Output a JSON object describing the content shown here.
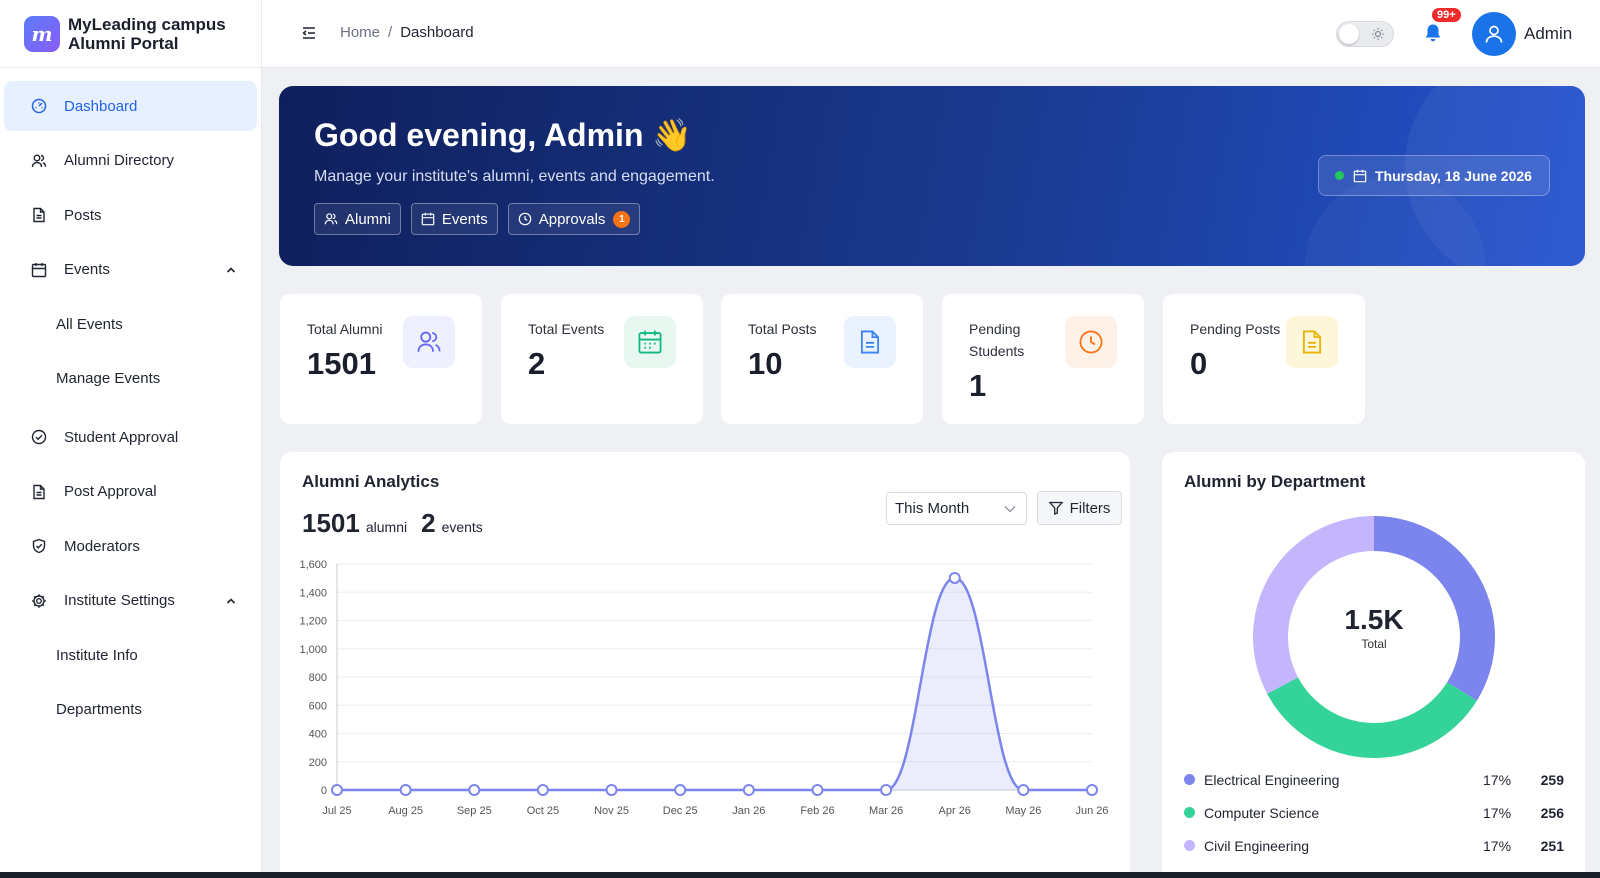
{
  "brand": {
    "logo_letter": "m",
    "line1": "MyLeading campus",
    "line2": "Alumni Portal"
  },
  "sidebar": {
    "items": [
      {
        "label": "Dashboard",
        "icon": "dashboard-icon"
      },
      {
        "label": "Alumni Directory",
        "icon": "users-icon"
      },
      {
        "label": "Posts",
        "icon": "file-icon"
      },
      {
        "label": "Events",
        "icon": "calendar-icon",
        "expanded": true
      },
      {
        "label": "Student Approval",
        "icon": "check-circle-icon"
      },
      {
        "label": "Post Approval",
        "icon": "file-check-icon"
      },
      {
        "label": "Moderators",
        "icon": "shield-icon"
      },
      {
        "label": "Institute Settings",
        "icon": "gear-icon",
        "expanded": true
      }
    ],
    "events_sub": [
      "All Events",
      "Manage Events"
    ],
    "settings_sub": [
      "Institute Info",
      "Departments"
    ]
  },
  "header": {
    "breadcrumb_home": "Home",
    "breadcrumb_sep": "/",
    "breadcrumb_current": "Dashboard",
    "notifications_badge": "99+",
    "user_name": "Admin"
  },
  "hero": {
    "greeting": "Good evening, Admin 👋",
    "subtitle": "Manage your institute's alumni, events and engagement.",
    "chips": [
      {
        "label": "Alumni",
        "icon": "users-icon"
      },
      {
        "label": "Events",
        "icon": "calendar-icon"
      },
      {
        "label": "Approvals",
        "icon": "clock-icon",
        "count": "1"
      }
    ],
    "date": "Thursday, 18 June 2026"
  },
  "stats": [
    {
      "label": "Total Alumni",
      "value": "1501",
      "icon": "users-icon",
      "color": "#6366f1",
      "bg": "#eef0fe"
    },
    {
      "label": "Total Events",
      "value": "2",
      "icon": "calendar-icon",
      "color": "#10b981",
      "bg": "#e8f8f1"
    },
    {
      "label": "Total Posts",
      "value": "10",
      "icon": "file-icon",
      "color": "#3b82f6",
      "bg": "#eaf2fe"
    },
    {
      "label": "Pending Students",
      "value": "1",
      "icon": "clock-icon",
      "color": "#f97316",
      "bg": "#fef1e7"
    },
    {
      "label": "Pending Posts",
      "value": "0",
      "icon": "file-icon",
      "color": "#eab308",
      "bg": "#fdf6d8"
    }
  ],
  "analytics": {
    "title": "Alumni Analytics",
    "alumni_count": "1501",
    "alumni_word": "alumni",
    "events_count": "2",
    "events_word": "events",
    "period": "This Month",
    "filters_label": "Filters"
  },
  "chart_data": {
    "type": "area",
    "x": [
      "Jul 25",
      "Aug 25",
      "Sep 25",
      "Oct 25",
      "Nov 25",
      "Dec 25",
      "Jan 26",
      "Feb 26",
      "Mar 26",
      "Apr 26",
      "May 26",
      "Jun 26"
    ],
    "series": [
      {
        "values": [
          0,
          0,
          0,
          0,
          0,
          0,
          0,
          0,
          0,
          1501,
          0,
          0
        ]
      }
    ],
    "ylim": [
      0,
      1600
    ],
    "yticks": [
      "0",
      "200",
      "400",
      "600",
      "800",
      "1,000",
      "1,200",
      "1,400",
      "1,600"
    ],
    "color": "#7c85ee",
    "grid": true
  },
  "department": {
    "title": "Alumni by Department",
    "center_value": "1.5K",
    "center_label": "Total",
    "donut": [
      {
        "name": "Electrical Engineering",
        "value": 259,
        "color": "#7c85ee"
      },
      {
        "name": "Computer Science",
        "value": 256,
        "color": "#34d399"
      },
      {
        "name": "Civil Engineering",
        "value": 251,
        "color": "#c4b5fd"
      }
    ],
    "legend": [
      {
        "name": "Electrical Engineering",
        "pct": "17%",
        "count": "259",
        "color": "#7c85ee"
      },
      {
        "name": "Computer Science",
        "pct": "17%",
        "count": "256",
        "color": "#34d399"
      },
      {
        "name": "Civil Engineering",
        "pct": "17%",
        "count": "251",
        "color": "#c4b5fd"
      }
    ]
  }
}
